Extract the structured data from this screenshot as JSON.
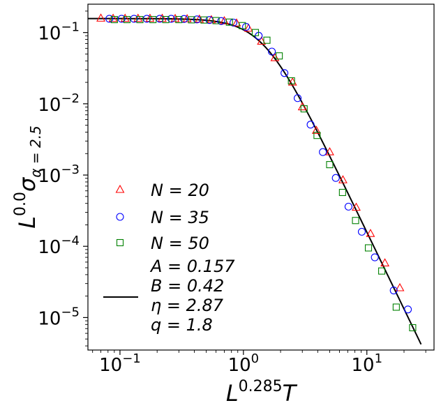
{
  "chart_data": {
    "type": "scatter",
    "scale": {
      "x": "log",
      "y": "log"
    },
    "xlim": [
      0.055,
      35
    ],
    "ylim": [
      3.5e-06,
      0.25
    ],
    "grid": false,
    "legend_position": "lower-left",
    "xlabel": {
      "base": "L",
      "exp": "0.285",
      "tail": "T"
    },
    "ylabel": {
      "base": "L",
      "exp": "0.0",
      "sym": "σ",
      "sub": "α = 2.5"
    },
    "x_ticks": [
      {
        "value": 0.1,
        "base": "10",
        "exp": "−1"
      },
      {
        "value": 1,
        "base": "10",
        "exp": "0"
      },
      {
        "value": 10,
        "base": "10",
        "exp": "1"
      }
    ],
    "y_ticks": [
      {
        "value": 0.1,
        "base": "10",
        "exp": "−1"
      },
      {
        "value": 0.01,
        "base": "10",
        "exp": "−2"
      },
      {
        "value": 0.001,
        "base": "10",
        "exp": "−3"
      },
      {
        "value": 0.0001,
        "base": "10",
        "exp": "−4"
      },
      {
        "value": 1e-05,
        "base": "10",
        "exp": "−5"
      }
    ],
    "series": [
      {
        "name": "N = 20",
        "marker": "triangle",
        "color": "#ff0000",
        "points": [
          [
            0.07,
            0.158
          ],
          [
            0.088,
            0.157
          ],
          [
            0.11,
            0.157
          ],
          [
            0.14,
            0.157
          ],
          [
            0.175,
            0.157
          ],
          [
            0.22,
            0.157
          ],
          [
            0.28,
            0.156
          ],
          [
            0.35,
            0.155
          ],
          [
            0.44,
            0.153
          ],
          [
            0.55,
            0.15
          ],
          [
            0.7,
            0.145
          ],
          [
            0.88,
            0.135
          ],
          [
            1.1,
            0.114
          ],
          [
            1.4,
            0.075
          ],
          [
            1.8,
            0.044
          ],
          [
            2.5,
            0.02
          ],
          [
            3.0,
            0.009
          ],
          [
            3.9,
            0.0042
          ],
          [
            5.0,
            0.0021
          ],
          [
            6.4,
            0.00085
          ],
          [
            8.2,
            0.00035
          ],
          [
            10.7,
            0.00015
          ],
          [
            14.0,
            5.8e-05
          ],
          [
            18.5,
            2.6e-05
          ]
        ]
      },
      {
        "name": "N = 35",
        "marker": "circle",
        "color": "#0000ff",
        "points": [
          [
            0.082,
            0.156
          ],
          [
            0.103,
            0.156
          ],
          [
            0.13,
            0.156
          ],
          [
            0.165,
            0.156
          ],
          [
            0.21,
            0.156
          ],
          [
            0.26,
            0.156
          ],
          [
            0.33,
            0.155
          ],
          [
            0.42,
            0.153
          ],
          [
            0.53,
            0.15
          ],
          [
            0.66,
            0.145
          ],
          [
            0.83,
            0.138
          ],
          [
            1.05,
            0.12
          ],
          [
            1.33,
            0.09
          ],
          [
            1.7,
            0.054
          ],
          [
            2.15,
            0.027
          ],
          [
            2.75,
            0.012
          ],
          [
            3.5,
            0.0051
          ],
          [
            4.4,
            0.0021
          ],
          [
            5.6,
            0.00091
          ],
          [
            7.1,
            0.00036
          ],
          [
            9.1,
            0.00016
          ],
          [
            11.6,
            7e-05
          ],
          [
            16.5,
            2.4e-05
          ],
          [
            21.5,
            1.3e-05
          ]
        ]
      },
      {
        "name": "N = 50",
        "marker": "square",
        "color": "#008000",
        "points": [
          [
            0.09,
            0.152
          ],
          [
            0.114,
            0.152
          ],
          [
            0.145,
            0.152
          ],
          [
            0.185,
            0.152
          ],
          [
            0.235,
            0.152
          ],
          [
            0.3,
            0.152
          ],
          [
            0.38,
            0.151
          ],
          [
            0.48,
            0.15
          ],
          [
            0.6,
            0.147
          ],
          [
            0.77,
            0.14
          ],
          [
            0.98,
            0.125
          ],
          [
            1.25,
            0.1
          ],
          [
            1.55,
            0.078
          ],
          [
            1.95,
            0.047
          ],
          [
            2.45,
            0.021
          ],
          [
            3.1,
            0.0085
          ],
          [
            3.95,
            0.0036
          ],
          [
            5.0,
            0.0014
          ],
          [
            6.35,
            0.00057
          ],
          [
            8.1,
            0.00023
          ],
          [
            10.3,
            9.5e-05
          ],
          [
            13.2,
            4.5e-05
          ],
          [
            17.3,
            1.4e-05
          ],
          [
            23.5,
            7.2e-06
          ]
        ]
      }
    ],
    "fit": {
      "params": {
        "A": 0.157,
        "B": 0.42,
        "eta": 2.87,
        "q": 1.8
      },
      "x_range": [
        0.055,
        27.5
      ],
      "labels": [
        "A = 0.157",
        "B = 0.42",
        "η = 2.87",
        "q = 1.8"
      ]
    }
  }
}
